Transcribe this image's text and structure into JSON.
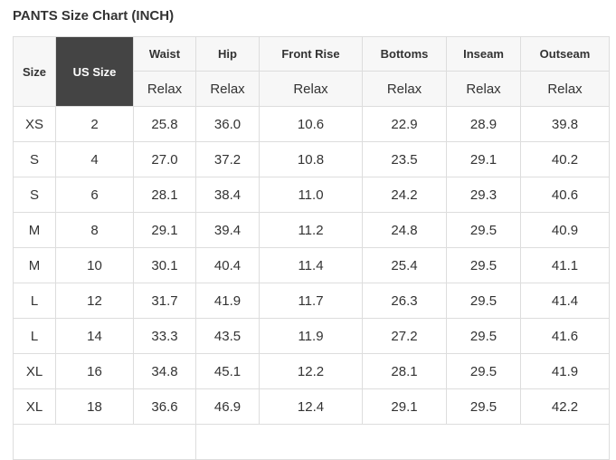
{
  "title": "PANTS Size Chart (INCH)",
  "headers": {
    "size": "Size",
    "us_size": "US Size",
    "columns": [
      "Waist",
      "Hip",
      "Front Rise",
      "Bottoms",
      "Inseam",
      "Outseam"
    ],
    "sub": [
      "Relax",
      "Relax",
      "Relax",
      "Relax",
      "Relax",
      "Relax"
    ]
  },
  "rows": [
    [
      "XS",
      "2",
      "25.8",
      "36.0",
      "10.6",
      "22.9",
      "28.9",
      "39.8"
    ],
    [
      "S",
      "4",
      "27.0",
      "37.2",
      "10.8",
      "23.5",
      "29.1",
      "40.2"
    ],
    [
      "S",
      "6",
      "28.1",
      "38.4",
      "11.0",
      "24.2",
      "29.3",
      "40.6"
    ],
    [
      "M",
      "8",
      "29.1",
      "39.4",
      "11.2",
      "24.8",
      "29.5",
      "40.9"
    ],
    [
      "M",
      "10",
      "30.1",
      "40.4",
      "11.4",
      "25.4",
      "29.5",
      "41.1"
    ],
    [
      "L",
      "12",
      "31.7",
      "41.9",
      "11.7",
      "26.3",
      "29.5",
      "41.4"
    ],
    [
      "L",
      "14",
      "33.3",
      "43.5",
      "11.9",
      "27.2",
      "29.5",
      "41.6"
    ],
    [
      "XL",
      "16",
      "34.8",
      "45.1",
      "12.2",
      "28.1",
      "29.5",
      "41.9"
    ],
    [
      "XL",
      "18",
      "36.6",
      "46.9",
      "12.4",
      "29.1",
      "29.5",
      "42.2"
    ]
  ],
  "colors": {
    "header_dark": "#444444",
    "header_bg": "#f7f7f7",
    "border": "#dddddd"
  }
}
